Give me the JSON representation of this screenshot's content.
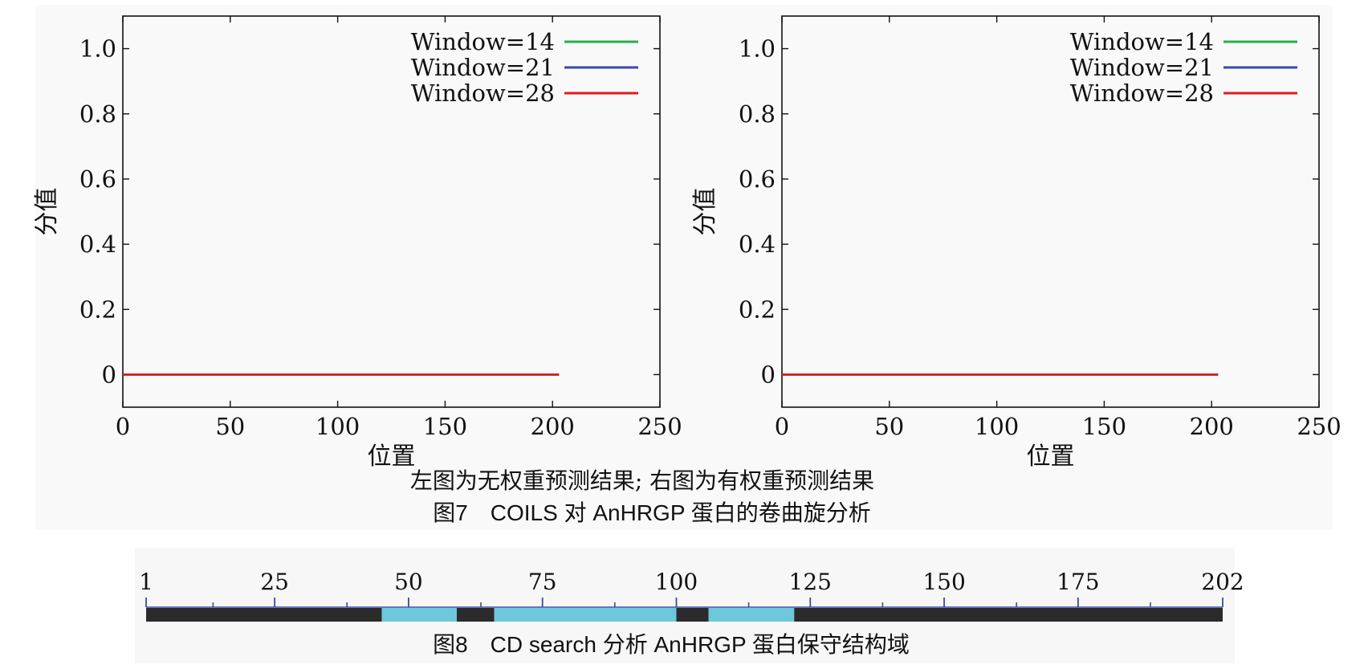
{
  "colors": {
    "panel_bg": "#f9f9f9",
    "window14": "#22b14c",
    "window21": "#3a4aa8",
    "window28": "#e31b1b",
    "track_dark": "#2b2b2b",
    "domain_cyan": "#6ec8dc",
    "tick_blue": "#3b4aa0"
  },
  "chart_data": [
    {
      "type": "line",
      "title": "",
      "xlabel": "位置",
      "ylabel": "分值",
      "xlim": [
        0,
        250
      ],
      "ylim": [
        -0.1,
        1.1
      ],
      "xticks": [
        0,
        50,
        100,
        150,
        200,
        250
      ],
      "yticks": [
        0,
        0.2,
        0.4,
        0.6,
        0.8,
        1.0
      ],
      "xtick_labels": [
        "0",
        "50",
        "100",
        "150",
        "200",
        "250"
      ],
      "ytick_labels": [
        "0",
        "0.2",
        "0.4",
        "0.6",
        "0.8",
        "1.0"
      ],
      "legend_position": "top-right",
      "series": [
        {
          "name": "Window=14",
          "color": "#22b14c",
          "x": [
            0,
            203
          ],
          "y": [
            0,
            0
          ]
        },
        {
          "name": "Window=21",
          "color": "#3a4aa8",
          "x": [
            0,
            203
          ],
          "y": [
            0,
            0
          ]
        },
        {
          "name": "Window=28",
          "color": "#e31b1b",
          "x": [
            0,
            203
          ],
          "y": [
            0,
            0
          ]
        }
      ]
    },
    {
      "type": "line",
      "title": "",
      "xlabel": "位置",
      "ylabel": "分值",
      "xlim": [
        0,
        250
      ],
      "ylim": [
        -0.1,
        1.1
      ],
      "xticks": [
        0,
        50,
        100,
        150,
        200,
        250
      ],
      "yticks": [
        0,
        0.2,
        0.4,
        0.6,
        0.8,
        1.0
      ],
      "xtick_labels": [
        "0",
        "50",
        "100",
        "150",
        "200",
        "250"
      ],
      "ytick_labels": [
        "0",
        "0.2",
        "0.4",
        "0.6",
        "0.8",
        "1.0"
      ],
      "legend_position": "top-right",
      "series": [
        {
          "name": "Window=14",
          "color": "#22b14c",
          "x": [
            0,
            203
          ],
          "y": [
            0,
            0
          ]
        },
        {
          "name": "Window=21",
          "color": "#3a4aa8",
          "x": [
            0,
            203
          ],
          "y": [
            0,
            0
          ]
        },
        {
          "name": "Window=28",
          "color": "#e31b1b",
          "x": [
            0,
            203
          ],
          "y": [
            0,
            0
          ]
        }
      ]
    },
    {
      "type": "bar",
      "title": "",
      "xlim": [
        1,
        202
      ],
      "xticks": [
        1,
        25,
        50,
        75,
        100,
        125,
        150,
        175,
        202
      ],
      "xtick_labels": [
        "1",
        "25",
        "50",
        "75",
        "100",
        "125",
        "150",
        "175",
        "202"
      ],
      "segments": [
        {
          "start": 1,
          "end": 45,
          "kind": "background"
        },
        {
          "start": 45,
          "end": 59,
          "kind": "domain"
        },
        {
          "start": 59,
          "end": 66,
          "kind": "background"
        },
        {
          "start": 66,
          "end": 100,
          "kind": "domain"
        },
        {
          "start": 100,
          "end": 106,
          "kind": "background"
        },
        {
          "start": 106,
          "end": 122,
          "kind": "domain"
        },
        {
          "start": 122,
          "end": 202,
          "kind": "background"
        }
      ]
    }
  ],
  "captions": {
    "fig7_note": "左图为无权重预测结果; 右图为有权重预测结果",
    "fig7_title": "图7　COILS 对 AnHRGP 蛋白的卷曲旋分析",
    "fig8_title": "图8　CD search 分析 AnHRGP 蛋白保守结构域"
  }
}
